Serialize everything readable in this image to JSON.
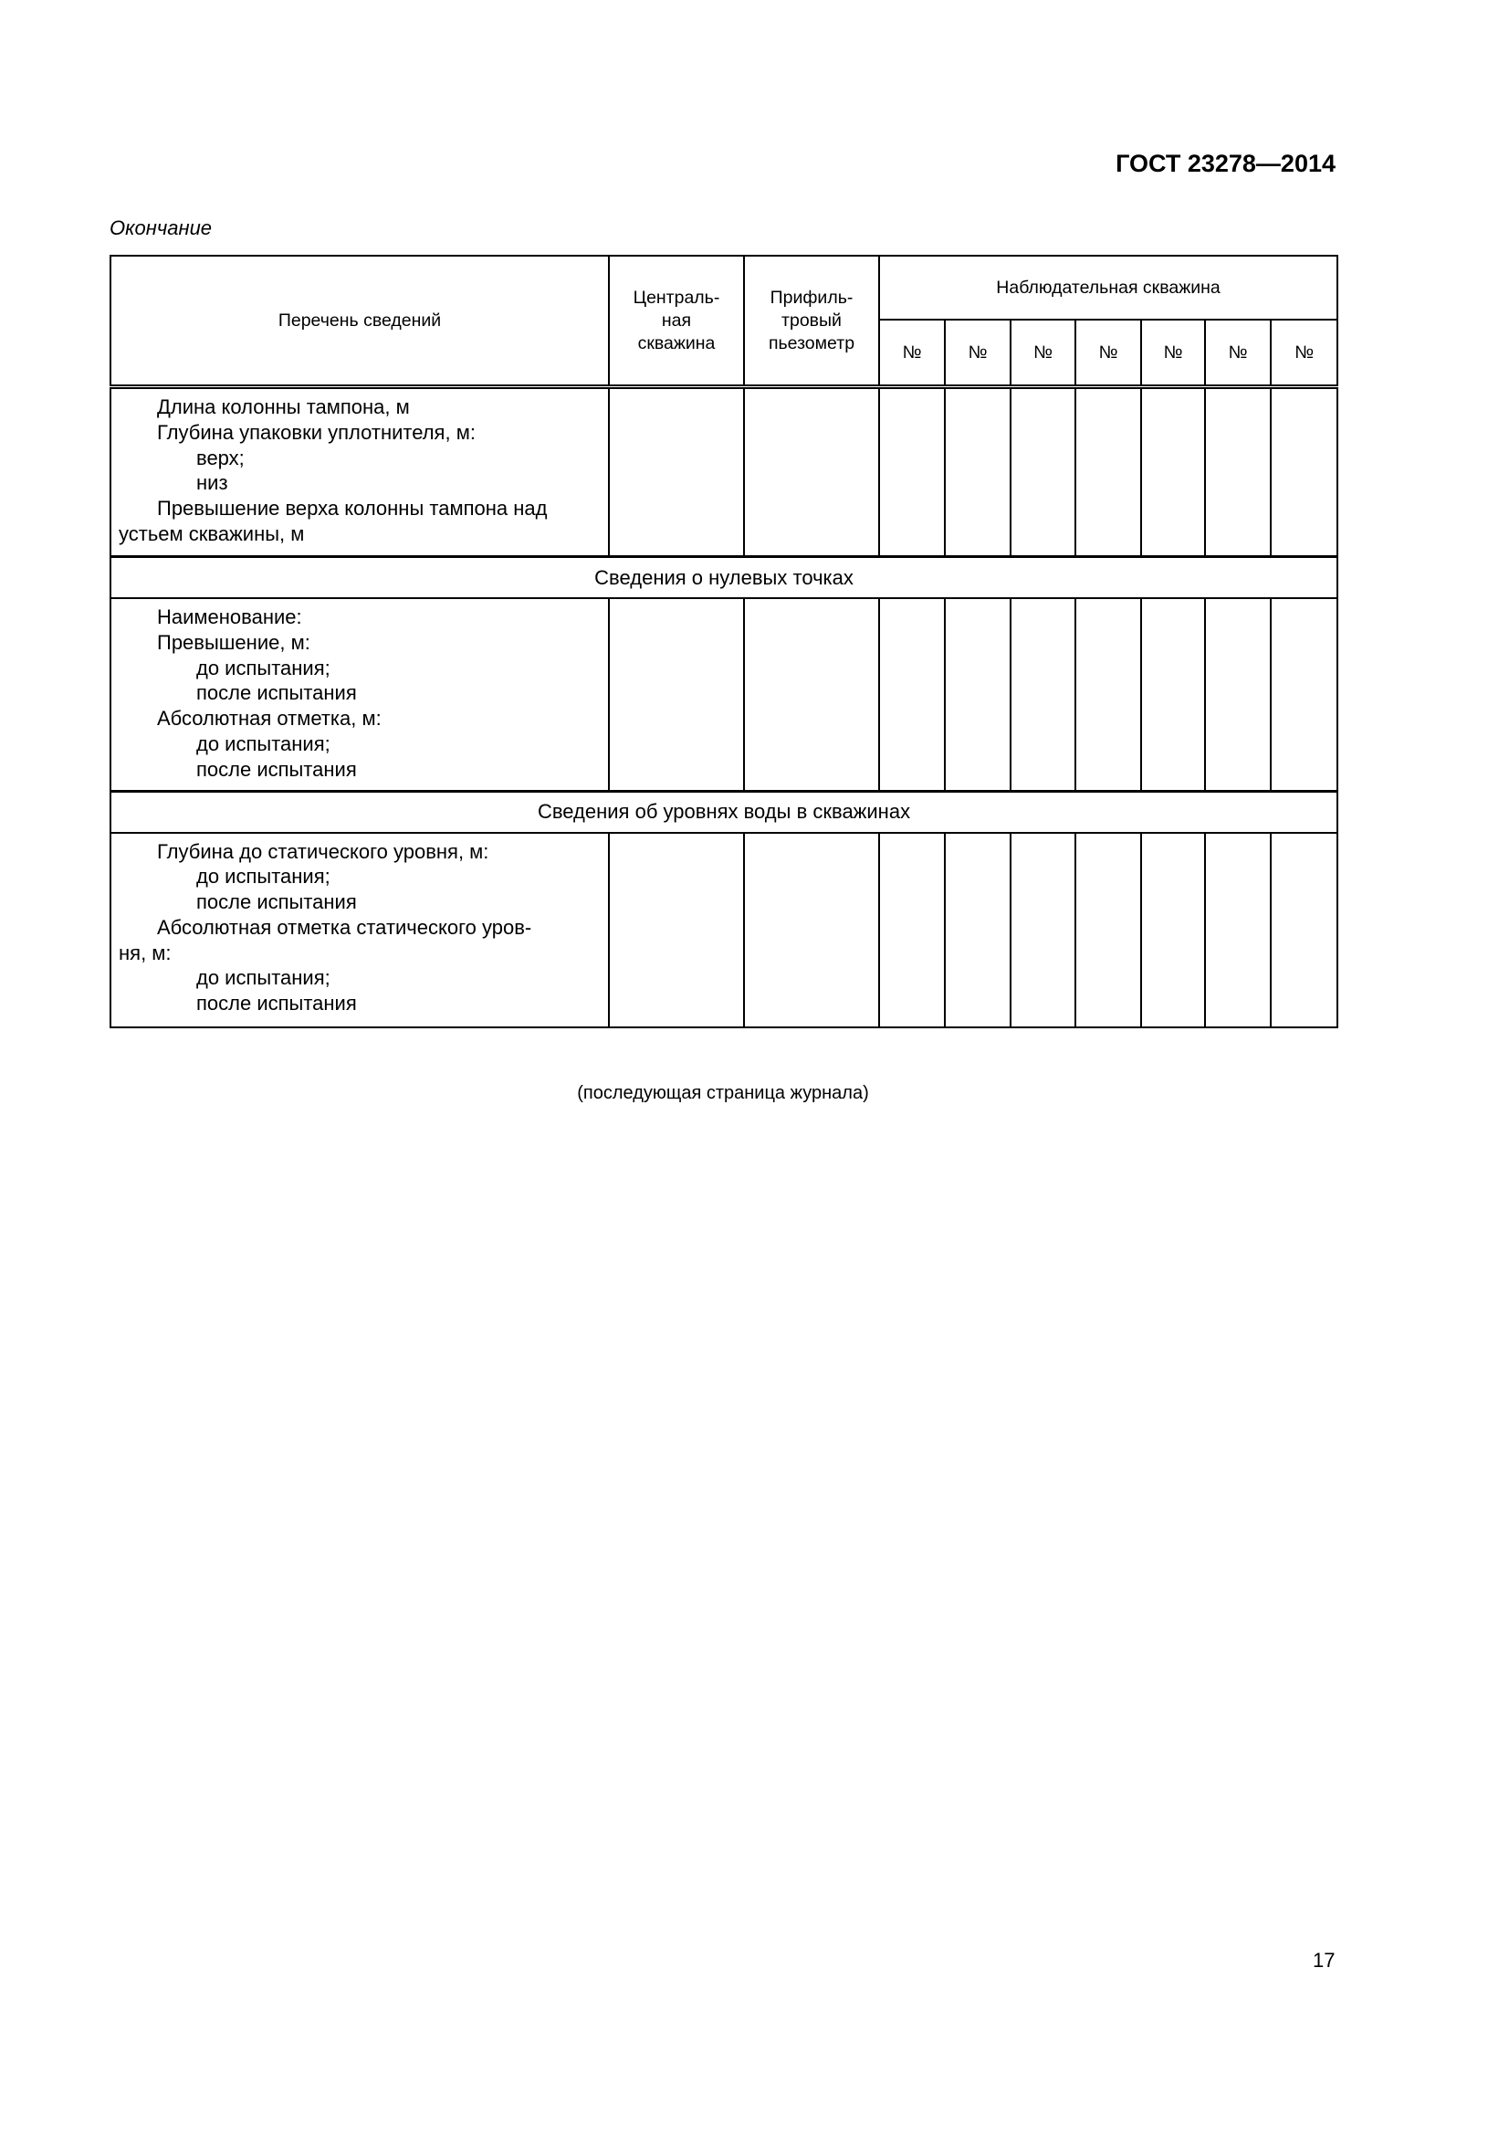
{
  "header": {
    "doc_code": "ГОСТ 23278—2014",
    "continuation": "Окончание"
  },
  "table": {
    "col_list": "Перечень сведений",
    "col_central": [
      "Централь-",
      "ная",
      "скважина"
    ],
    "col_piezo": [
      "Прифиль-",
      "тровый",
      "пьезометр"
    ],
    "col_observ": "Наблюдательная скважина",
    "num_sign": "№",
    "rows1": [
      {
        "indent": 1,
        "text": "Длина колонны тампона, м"
      },
      {
        "indent": 1,
        "text": "Глубина упаковки уплотнителя, м:"
      },
      {
        "indent": 2,
        "text": "верх;"
      },
      {
        "indent": 2,
        "text": "низ"
      },
      {
        "indent": 1,
        "text": "Превышение верха колонны тампона над"
      },
      {
        "indent": 0,
        "text": "устьем скважины, м"
      }
    ],
    "section1": "Сведения о нулевых точках",
    "rows2": [
      {
        "indent": 1,
        "text": "Наименование:"
      },
      {
        "indent": 1,
        "text": "Превышение, м:"
      },
      {
        "indent": 2,
        "text": "до испытания;"
      },
      {
        "indent": 2,
        "text": "после испытания"
      },
      {
        "indent": 1,
        "text": "Абсолютная отметка, м:"
      },
      {
        "indent": 2,
        "text": "до испытания;"
      },
      {
        "indent": 2,
        "text": "после испытания"
      }
    ],
    "section2": "Сведения об уровнях воды в скважинах",
    "rows3": [
      {
        "indent": 1,
        "text": "Глубина до статического уровня, м:"
      },
      {
        "indent": 2,
        "text": "до испытания;"
      },
      {
        "indent": 2,
        "text": "после испытания"
      },
      {
        "indent": 1,
        "text": "Абсолютная отметка статического уров-"
      },
      {
        "indent": 0,
        "text": "ня, м:"
      },
      {
        "indent": 2,
        "text": "до испытания;"
      },
      {
        "indent": 2,
        "text": "после испытания"
      }
    ]
  },
  "footer": {
    "caption": "(последующая страница журнала)",
    "page_number": "17"
  }
}
